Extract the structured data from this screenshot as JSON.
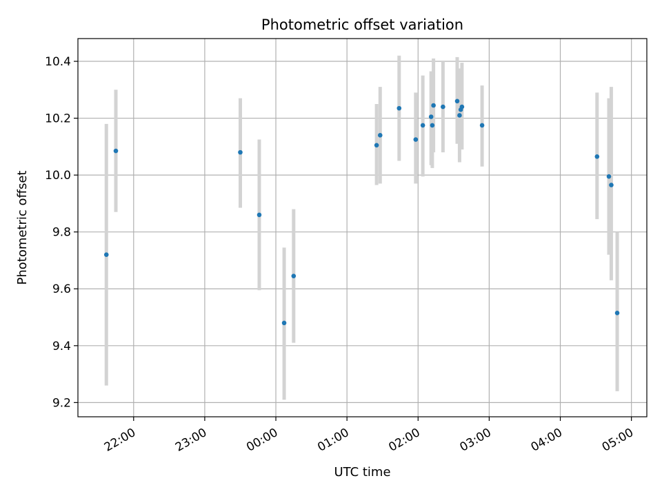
{
  "chart_data": {
    "type": "scatter",
    "title": "Photometric offset variation",
    "xlabel": "UTC time",
    "ylabel": "Photometric offset",
    "x_tick_labels": [
      "22:00",
      "23:00",
      "00:00",
      "01:00",
      "02:00",
      "03:00",
      "04:00",
      "05:00"
    ],
    "y_tick_labels": [
      "9.2",
      "9.4",
      "9.6",
      "9.8",
      "10.0",
      "10.2",
      "10.4"
    ],
    "xlim": [
      "21:13",
      "05:13"
    ],
    "ylim": [
      9.15,
      10.48
    ],
    "grid": true,
    "errorbar_color": "#d3d3d3",
    "marker_color": "#1f77b4",
    "points": [
      {
        "t": "21:37",
        "y": 9.72,
        "ylo": 9.26,
        "yhi": 10.18
      },
      {
        "t": "21:45",
        "y": 10.085,
        "ylo": 9.87,
        "yhi": 10.3
      },
      {
        "t": "23:30",
        "y": 10.08,
        "ylo": 9.885,
        "yhi": 10.27
      },
      {
        "t": "23:46",
        "y": 9.86,
        "ylo": 9.595,
        "yhi": 10.125
      },
      {
        "t": "00:07",
        "y": 9.48,
        "ylo": 9.21,
        "yhi": 9.745
      },
      {
        "t": "00:15",
        "y": 9.645,
        "ylo": 9.41,
        "yhi": 9.88
      },
      {
        "t": "01:25",
        "y": 10.105,
        "ylo": 9.965,
        "yhi": 10.25
      },
      {
        "t": "01:28",
        "y": 10.14,
        "ylo": 9.97,
        "yhi": 10.31
      },
      {
        "t": "01:44",
        "y": 10.235,
        "ylo": 10.05,
        "yhi": 10.42
      },
      {
        "t": "01:58",
        "y": 10.125,
        "ylo": 9.97,
        "yhi": 10.29
      },
      {
        "t": "02:04",
        "y": 10.175,
        "ylo": 9.995,
        "yhi": 10.35
      },
      {
        "t": "02:11",
        "y": 10.205,
        "ylo": 10.035,
        "yhi": 10.365
      },
      {
        "t": "02:12",
        "y": 10.175,
        "ylo": 10.025,
        "yhi": 10.32
      },
      {
        "t": "02:13",
        "y": 10.245,
        "ylo": 10.08,
        "yhi": 10.41
      },
      {
        "t": "02:21",
        "y": 10.24,
        "ylo": 10.08,
        "yhi": 10.4
      },
      {
        "t": "02:33",
        "y": 10.26,
        "ylo": 10.11,
        "yhi": 10.415
      },
      {
        "t": "02:35",
        "y": 10.21,
        "ylo": 10.045,
        "yhi": 10.375
      },
      {
        "t": "02:36",
        "y": 10.23,
        "ylo": 10.09,
        "yhi": 10.37
      },
      {
        "t": "02:37",
        "y": 10.24,
        "ylo": 10.09,
        "yhi": 10.395
      },
      {
        "t": "02:54",
        "y": 10.175,
        "ylo": 10.03,
        "yhi": 10.315
      },
      {
        "t": "04:31",
        "y": 10.065,
        "ylo": 9.845,
        "yhi": 10.29
      },
      {
        "t": "04:41",
        "y": 9.995,
        "ylo": 9.72,
        "yhi": 10.27
      },
      {
        "t": "04:43",
        "y": 9.965,
        "ylo": 9.63,
        "yhi": 10.31
      },
      {
        "t": "04:48",
        "y": 9.515,
        "ylo": 9.24,
        "yhi": 9.8
      }
    ]
  }
}
